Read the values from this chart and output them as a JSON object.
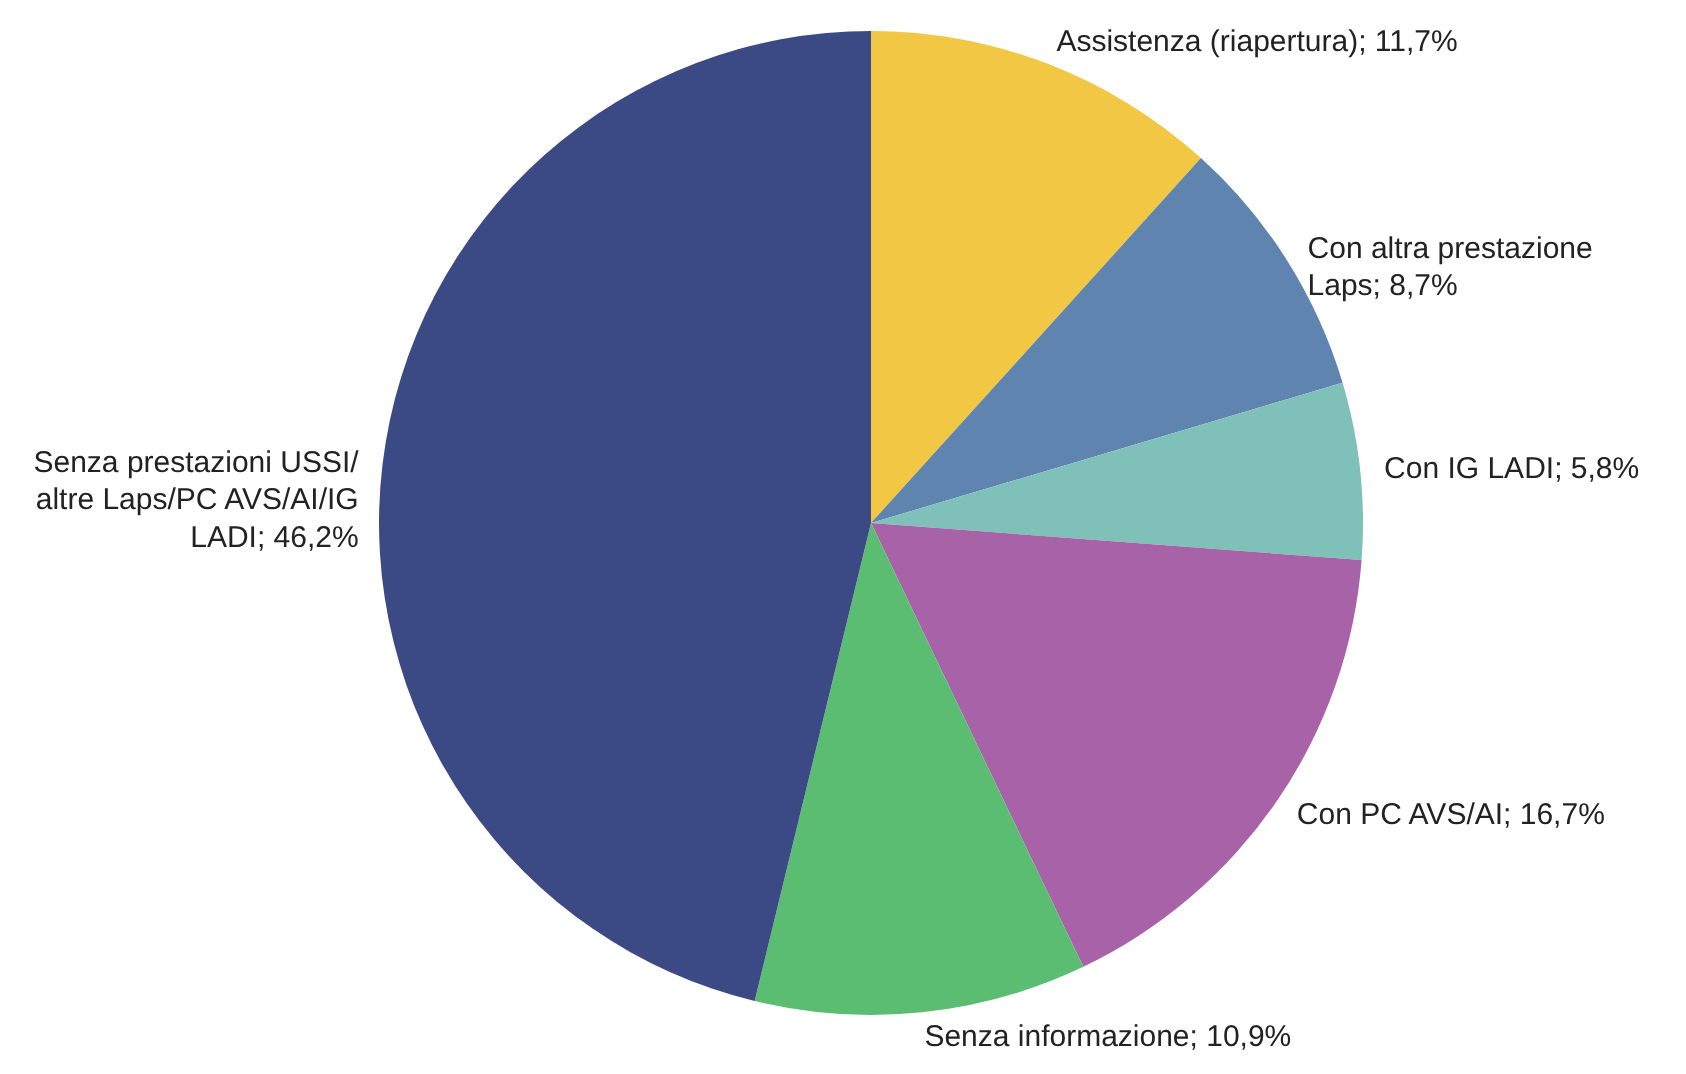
{
  "chart_data": {
    "type": "pie",
    "categories": [
      "Assistenza (riapertura)",
      "Con altra prestazione Laps",
      "Con IG LADI",
      "Con PC AVS/AI",
      "Senza informazione",
      "Senza prestazioni USSI/altre Laps/PC AVS/AI/IG LADI"
    ],
    "values": [
      11.7,
      8.7,
      5.8,
      16.7,
      10.9,
      46.2
    ],
    "value_labels": [
      "11,7%",
      "8,7%",
      "5,8%",
      "16,7%",
      "10,9%",
      "46,2%"
    ],
    "colors": [
      "#f2c744",
      "#5f84b0",
      "#7fc1b8",
      "#a862a8",
      "#5bbd72",
      "#3b4a85"
    ]
  }
}
